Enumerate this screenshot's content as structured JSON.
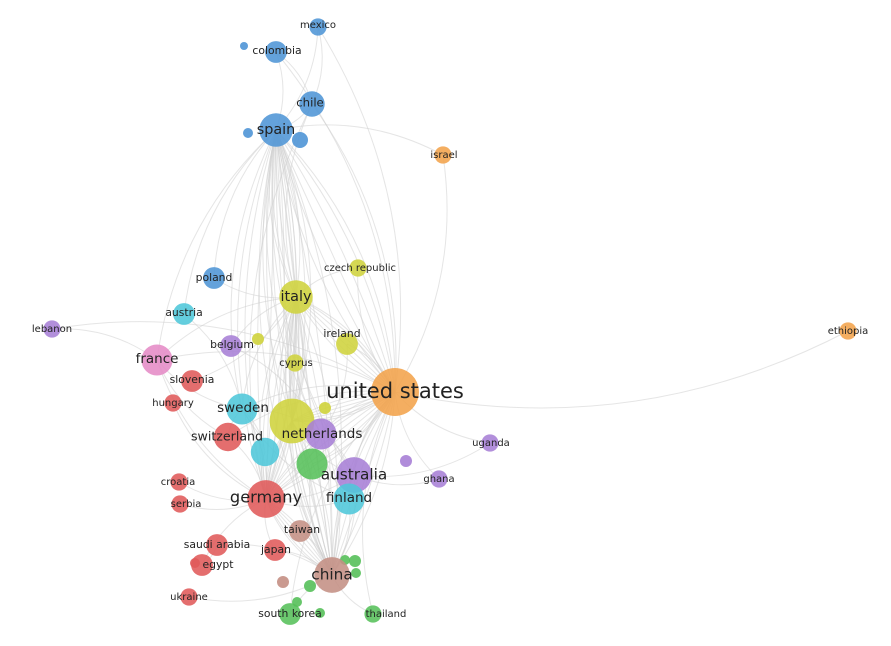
{
  "network": {
    "clusters": {
      "red": "#e05a5a",
      "green": "#56c05a",
      "blue": "#4f95d6",
      "olive": "#cfd33c",
      "purple": "#a77fd6",
      "cyan": "#4ec7da",
      "orange": "#f3a34b",
      "brown": "#c48f84",
      "pink": "#e58bc6"
    },
    "nodes": [
      {
        "id": "mexico",
        "label": "mexico",
        "cluster": "blue",
        "weight": 1
      },
      {
        "id": "colombia",
        "label": "colombia",
        "cluster": "blue",
        "weight": 2
      },
      {
        "id": "chile",
        "label": "chile",
        "cluster": "blue",
        "weight": 3
      },
      {
        "id": "spain",
        "label": "spain",
        "cluster": "blue",
        "weight": 6
      },
      {
        "id": "israel",
        "label": "israel",
        "cluster": "orange",
        "weight": 1
      },
      {
        "id": "poland",
        "label": "poland",
        "cluster": "blue",
        "weight": 2
      },
      {
        "id": "czech-republic",
        "label": "czech republic",
        "cluster": "olive",
        "weight": 1
      },
      {
        "id": "italy",
        "label": "italy",
        "cluster": "olive",
        "weight": 6
      },
      {
        "id": "austria",
        "label": "austria",
        "cluster": "cyan",
        "weight": 2
      },
      {
        "id": "lebanon",
        "label": "lebanon",
        "cluster": "purple",
        "weight": 1
      },
      {
        "id": "ireland",
        "label": "ireland",
        "cluster": "olive",
        "weight": 2
      },
      {
        "id": "belgium",
        "label": "belgium",
        "cluster": "purple",
        "weight": 2
      },
      {
        "id": "france",
        "label": "france",
        "cluster": "pink",
        "weight": 5
      },
      {
        "id": "cyprus",
        "label": "cyprus",
        "cluster": "olive",
        "weight": 1
      },
      {
        "id": "ethiopia",
        "label": "ethiopia",
        "cluster": "orange",
        "weight": 1
      },
      {
        "id": "slovenia",
        "label": "slovenia",
        "cluster": "red",
        "weight": 2
      },
      {
        "id": "united-states",
        "label": "united states",
        "cluster": "orange",
        "weight": 14
      },
      {
        "id": "hungary",
        "label": "hungary",
        "cluster": "red",
        "weight": 1
      },
      {
        "id": "sweden",
        "label": "sweden",
        "cluster": "cyan",
        "weight": 5
      },
      {
        "id": "switzerland",
        "label": "switzerland",
        "cluster": "red",
        "weight": 4
      },
      {
        "id": "netherlands",
        "label": "netherlands",
        "cluster": "purple",
        "weight": 5
      },
      {
        "id": "uganda",
        "label": "uganda",
        "cluster": "purple",
        "weight": 1
      },
      {
        "id": "australia",
        "label": "australia",
        "cluster": "purple",
        "weight": 7
      },
      {
        "id": "ghana",
        "label": "ghana",
        "cluster": "purple",
        "weight": 1
      },
      {
        "id": "croatia",
        "label": "croatia",
        "cluster": "red",
        "weight": 1
      },
      {
        "id": "finland",
        "label": "finland",
        "cluster": "cyan",
        "weight": 5
      },
      {
        "id": "germany",
        "label": "germany",
        "cluster": "red",
        "weight": 8
      },
      {
        "id": "serbia",
        "label": "serbia",
        "cluster": "red",
        "weight": 1
      },
      {
        "id": "taiwan",
        "label": "taiwan",
        "cluster": "brown",
        "weight": 2
      },
      {
        "id": "saudi-arabia",
        "label": "saudi arabia",
        "cluster": "red",
        "weight": 2
      },
      {
        "id": "japan",
        "label": "japan",
        "cluster": "red",
        "weight": 2
      },
      {
        "id": "egypt",
        "label": "egypt",
        "cluster": "red",
        "weight": 2
      },
      {
        "id": "china",
        "label": "china",
        "cluster": "brown",
        "weight": 7
      },
      {
        "id": "ukraine",
        "label": "ukraine",
        "cluster": "red",
        "weight": 1
      },
      {
        "id": "south-korea",
        "label": "south korea",
        "cluster": "green",
        "weight": 2
      },
      {
        "id": "thailand",
        "label": "thailand",
        "cluster": "green",
        "weight": 1
      },
      {
        "id": "unlabeled-olive-center",
        "label": "",
        "cluster": "olive",
        "weight": 12
      },
      {
        "id": "unlabeled-green-mid",
        "label": "",
        "cluster": "green",
        "weight": 5
      },
      {
        "id": "unlabeled-cyan-mid",
        "label": "",
        "cluster": "cyan",
        "weight": 4
      }
    ],
    "edges": [
      [
        "united-states",
        "spain"
      ],
      [
        "united-states",
        "chile"
      ],
      [
        "united-states",
        "mexico"
      ],
      [
        "united-states",
        "colombia"
      ],
      [
        "united-states",
        "italy"
      ],
      [
        "united-states",
        "france"
      ],
      [
        "united-states",
        "germany"
      ],
      [
        "united-states",
        "china"
      ],
      [
        "united-states",
        "australia"
      ],
      [
        "united-states",
        "netherlands"
      ],
      [
        "united-states",
        "sweden"
      ],
      [
        "united-states",
        "ethiopia"
      ],
      [
        "united-states",
        "israel"
      ],
      [
        "united-states",
        "uganda"
      ],
      [
        "united-states",
        "ghana"
      ],
      [
        "united-states",
        "south-korea"
      ],
      [
        "united-states",
        "thailand"
      ],
      [
        "united-states",
        "finland"
      ],
      [
        "united-states",
        "lebanon"
      ],
      [
        "united-states",
        "switzerland"
      ],
      [
        "united-states",
        "ireland"
      ],
      [
        "spain",
        "italy"
      ],
      [
        "spain",
        "chile"
      ],
      [
        "spain",
        "colombia"
      ],
      [
        "spain",
        "mexico"
      ],
      [
        "spain",
        "france"
      ],
      [
        "spain",
        "germany"
      ],
      [
        "spain",
        "netherlands"
      ],
      [
        "spain",
        "sweden"
      ],
      [
        "spain",
        "china"
      ],
      [
        "spain",
        "australia"
      ],
      [
        "spain",
        "poland"
      ],
      [
        "spain",
        "austria"
      ],
      [
        "chile",
        "mexico"
      ],
      [
        "chile",
        "colombia"
      ],
      [
        "chile",
        "germany"
      ],
      [
        "chile",
        "italy"
      ],
      [
        "italy",
        "france"
      ],
      [
        "italy",
        "germany"
      ],
      [
        "italy",
        "netherlands"
      ],
      [
        "italy",
        "belgium"
      ],
      [
        "italy",
        "sweden"
      ],
      [
        "italy",
        "australia"
      ],
      [
        "italy",
        "china"
      ],
      [
        "italy",
        "cyprus"
      ],
      [
        "france",
        "germany"
      ],
      [
        "france",
        "sweden"
      ],
      [
        "france",
        "lebanon"
      ],
      [
        "france",
        "switzerland"
      ],
      [
        "germany",
        "china"
      ],
      [
        "germany",
        "australia"
      ],
      [
        "germany",
        "netherlands"
      ],
      [
        "germany",
        "switzerland"
      ],
      [
        "germany",
        "finland"
      ],
      [
        "germany",
        "sweden"
      ],
      [
        "germany",
        "japan"
      ],
      [
        "germany",
        "egypt"
      ],
      [
        "china",
        "australia"
      ],
      [
        "china",
        "taiwan"
      ],
      [
        "china",
        "south-korea"
      ],
      [
        "china",
        "thailand"
      ],
      [
        "china",
        "finland"
      ],
      [
        "china",
        "japan"
      ],
      [
        "china",
        "saudi-arabia"
      ],
      [
        "china",
        "netherlands"
      ],
      [
        "australia",
        "netherlands"
      ],
      [
        "australia",
        "finland"
      ],
      [
        "australia",
        "ghana"
      ],
      [
        "australia",
        "uganda"
      ],
      [
        "netherlands",
        "sweden"
      ],
      [
        "netherlands",
        "belgium"
      ],
      [
        "netherlands",
        "finland"
      ],
      [
        "netherlands",
        "ireland"
      ],
      [
        "sweden",
        "finland"
      ],
      [
        "sweden",
        "switzerland"
      ],
      [
        "sweden",
        "austria"
      ],
      [
        "czech-republic",
        "italy"
      ],
      [
        "czech-republic",
        "united-states"
      ],
      [
        "israel",
        "spain"
      ],
      [
        "croatia",
        "germany"
      ],
      [
        "serbia",
        "germany"
      ],
      [
        "hungary",
        "germany"
      ],
      [
        "slovenia",
        "italy"
      ],
      [
        "ukraine",
        "china"
      ],
      [
        "egypt",
        "saudi-arabia"
      ],
      [
        "poland",
        "italy"
      ],
      [
        "unlabeled-olive-center",
        "united-states"
      ],
      [
        "unlabeled-olive-center",
        "spain"
      ],
      [
        "unlabeled-olive-center",
        "china"
      ],
      [
        "unlabeled-olive-center",
        "germany"
      ],
      [
        "unlabeled-olive-center",
        "italy"
      ],
      [
        "unlabeled-olive-center",
        "australia"
      ],
      [
        "unlabeled-green-mid",
        "china"
      ],
      [
        "unlabeled-green-mid",
        "united-states"
      ],
      [
        "unlabeled-cyan-mid",
        "sweden"
      ],
      [
        "unlabeled-cyan-mid",
        "germany"
      ]
    ]
  }
}
